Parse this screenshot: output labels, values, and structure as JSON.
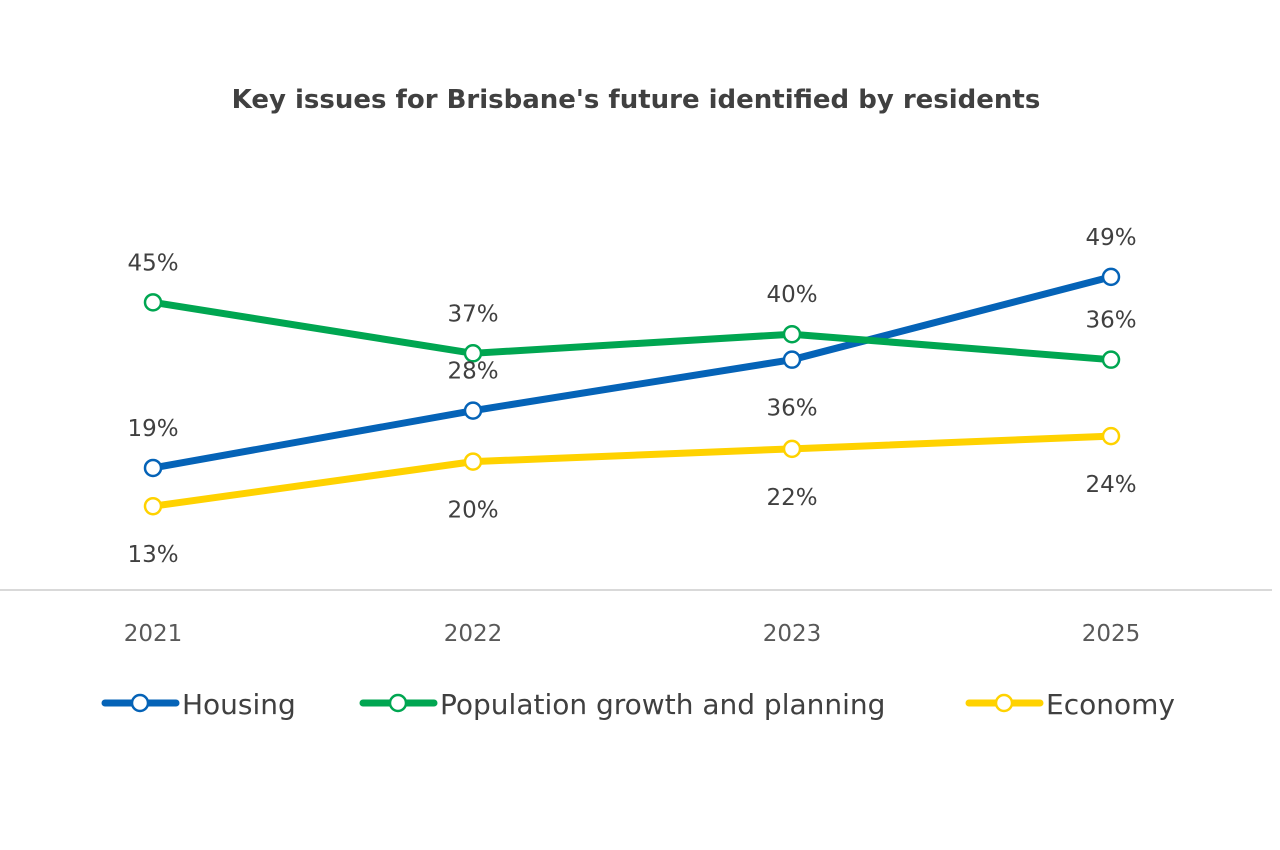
{
  "chart_data": {
    "type": "line",
    "title": "Key issues for Brisbane's future identified by residents",
    "categories": [
      "2021",
      "2022",
      "2023",
      "2025"
    ],
    "ylim": [
      0,
      50
    ],
    "grid": false,
    "legend_position": "bottom",
    "series": [
      {
        "name": "Housing",
        "values": [
          19,
          28,
          36,
          49
        ],
        "labels": [
          "19%",
          "28%",
          "36%",
          "49%"
        ],
        "color": "#0563B7"
      },
      {
        "name": "Population growth and planning",
        "values": [
          45,
          37,
          40,
          36
        ],
        "labels": [
          "45%",
          "37%",
          "40%",
          "36%"
        ],
        "color": "#00A651"
      },
      {
        "name": "Economy",
        "values": [
          13,
          20,
          22,
          24
        ],
        "labels": [
          "13%",
          "20%",
          "22%",
          "24%"
        ],
        "color": "#FFD200"
      }
    ]
  }
}
